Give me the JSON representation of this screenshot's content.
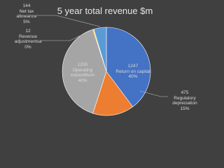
{
  "chart_data": {
    "type": "pie",
    "title": "5 year total revenue $m",
    "categories": [
      "Return on capital",
      "Regulatory depreciation",
      "Operating expenditure",
      "Revenue adjustmentsa",
      "Net tax allowance"
    ],
    "values": [
      1247,
      475,
      1255,
      12,
      144
    ],
    "percent_labels": [
      "40%",
      "15%",
      "40%",
      "0%",
      "5%"
    ],
    "colors": [
      "#4472c4",
      "#ed7d31",
      "#a5a5a5",
      "#ffc000",
      "#5b9bd5"
    ]
  }
}
